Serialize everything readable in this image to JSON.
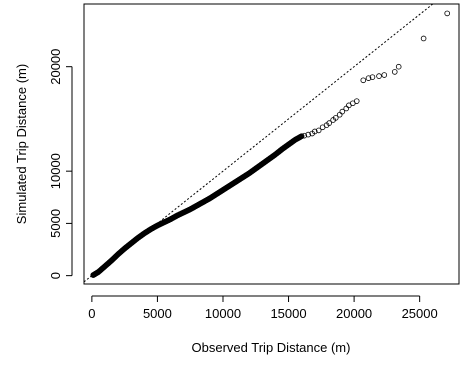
{
  "chart_data": {
    "type": "scatter",
    "title": "",
    "xlabel": "Observed Trip Distance (m)",
    "ylabel": "Simulated Trip Distance (m)",
    "xlim": [
      -600,
      28000
    ],
    "ylim": [
      -800,
      26000
    ],
    "x_ticks": [
      0,
      5000,
      10000,
      15000,
      20000,
      25000
    ],
    "y_ticks": [
      0,
      5000,
      10000,
      20000
    ],
    "reference_line": {
      "type": "identity",
      "style": "dotted"
    },
    "grid": false,
    "legend": "none",
    "point_style": "open-circle",
    "point_color": "#000000",
    "trend_points": [
      [
        100,
        50
      ],
      [
        500,
        350
      ],
      [
        1000,
        900
      ],
      [
        1500,
        1450
      ],
      [
        2000,
        2050
      ],
      [
        2500,
        2600
      ],
      [
        3000,
        3100
      ],
      [
        3500,
        3600
      ],
      [
        4000,
        4050
      ],
      [
        4500,
        4450
      ],
      [
        5000,
        4800
      ],
      [
        5500,
        5100
      ],
      [
        6000,
        5400
      ],
      [
        6500,
        5750
      ],
      [
        7000,
        6050
      ],
      [
        7500,
        6350
      ],
      [
        8000,
        6700
      ],
      [
        8500,
        7050
      ],
      [
        9000,
        7400
      ],
      [
        9500,
        7800
      ],
      [
        10000,
        8200
      ],
      [
        10500,
        8600
      ],
      [
        11000,
        9000
      ],
      [
        11500,
        9400
      ],
      [
        12000,
        9800
      ],
      [
        12500,
        10250
      ],
      [
        13000,
        10700
      ],
      [
        13500,
        11150
      ],
      [
        14000,
        11600
      ],
      [
        14500,
        12100
      ],
      [
        15000,
        12550
      ],
      [
        15500,
        13000
      ],
      [
        16000,
        13350
      ]
    ],
    "tail_points": [
      [
        16200,
        13400
      ],
      [
        16500,
        13500
      ],
      [
        16800,
        13600
      ],
      [
        17000,
        13800
      ],
      [
        17300,
        13900
      ],
      [
        17600,
        14200
      ],
      [
        17900,
        14400
      ],
      [
        18100,
        14600
      ],
      [
        18400,
        14900
      ],
      [
        18600,
        15100
      ],
      [
        18900,
        15400
      ],
      [
        19100,
        15700
      ],
      [
        19400,
        16000
      ],
      [
        19600,
        16300
      ],
      [
        19900,
        16500
      ],
      [
        20200,
        16700
      ],
      [
        20700,
        18700
      ],
      [
        21100,
        18900
      ],
      [
        21400,
        19000
      ],
      [
        21900,
        19100
      ],
      [
        22300,
        19200
      ],
      [
        23100,
        19500
      ],
      [
        23400,
        20000
      ],
      [
        25300,
        22700
      ],
      [
        27100,
        25100
      ]
    ]
  }
}
